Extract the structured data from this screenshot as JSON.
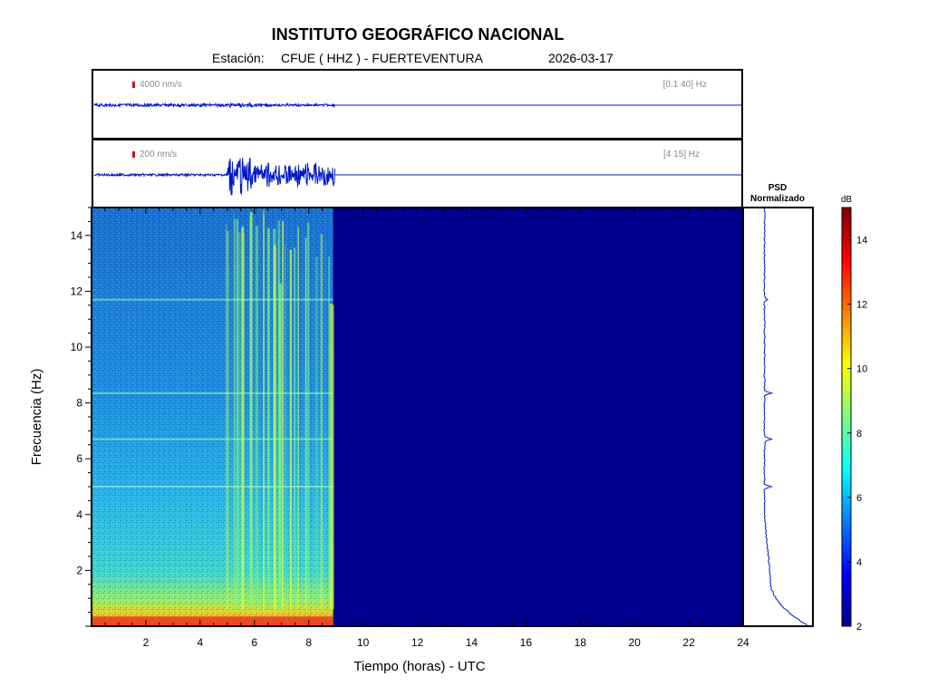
{
  "header": {
    "title": "INSTITUTO GEOGRÁFICO NACIONAL",
    "station_prefix": "Estación:",
    "station": "CFUE ( HHZ ) - FUERTEVENTURA",
    "date": "2026-03-17"
  },
  "trace_panels": [
    {
      "amplitude_label": "4000 nm/s",
      "band_label": "[0.1 40] Hz"
    },
    {
      "amplitude_label": "200 nm/s",
      "band_label": "[4 15] Hz"
    }
  ],
  "psd_panel": {
    "title_line1": "PSD",
    "title_line2": "Normalizado"
  },
  "colorbar": {
    "unit": "dB",
    "ticks": [
      "2",
      "4",
      "6",
      "8",
      "10",
      "12",
      "14"
    ],
    "range": [
      2,
      15
    ]
  },
  "chart_data": {
    "type": "heatmap",
    "title": "INSTITUTO GEOGRÁFICO NACIONAL",
    "xlabel": "Tiempo (horas) - UTC",
    "ylabel": "Frecuencia  (Hz)",
    "xlim": [
      0,
      24
    ],
    "ylim": [
      0,
      15
    ],
    "x_ticks": [
      "2",
      "4",
      "6",
      "8",
      "10",
      "12",
      "14",
      "16",
      "18",
      "20",
      "22",
      "24"
    ],
    "y_ticks": [
      "2",
      "4",
      "6",
      "8",
      "10",
      "12",
      "14"
    ],
    "data_end_hour": 8.9,
    "tremor_interval_hours": [
      4.9,
      8.9
    ],
    "psd_peaks_hz": [
      5.0,
      6.7,
      8.35,
      11.7
    ],
    "colormap": "jet",
    "no_data_color": "#00008f"
  }
}
